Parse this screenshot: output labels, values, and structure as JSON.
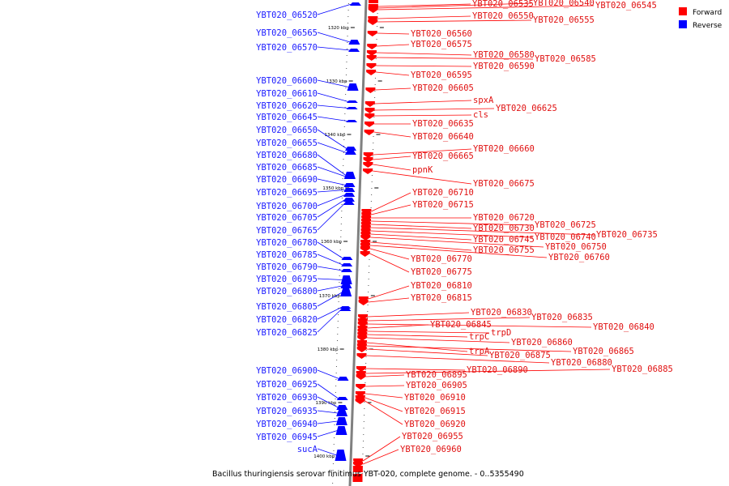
{
  "caption": "Bacillus thuringiensis serovar finitimus YBT-020, complete genome. - 0..5355490",
  "legend": [
    {
      "label": "Forward",
      "color": "#ff0000"
    },
    {
      "label": "Reverse",
      "color": "#0000ff"
    }
  ],
  "colors": {
    "forward": "#ff0000",
    "reverse": "#0000ff",
    "axis": "#808080"
  },
  "ticks": [
    "1320 kbp",
    "1330 kbp",
    "1340 kbp",
    "1350 kbp",
    "1360 kbp",
    "1370 kbp",
    "1380 kbp",
    "1390 kbp",
    "1400 kbp"
  ],
  "reverse_labels": [
    "YBT020_06520",
    "YBT020_06565",
    "YBT020_06570",
    "YBT020_06600",
    "YBT020_06610",
    "YBT020_06620",
    "YBT020_06645",
    "YBT020_06650",
    "YBT020_06655",
    "YBT020_06680",
    "YBT020_06685",
    "YBT020_06690",
    "YBT020_06695",
    "YBT020_06700",
    "YBT020_06705",
    "YBT020_06765",
    "YBT020_06780",
    "YBT020_06785",
    "YBT020_06790",
    "YBT020_06795",
    "YBT020_06800",
    "YBT020_06805",
    "YBT020_06820",
    "YBT020_06825",
    "YBT020_06900",
    "YBT020_06925",
    "YBT020_06930",
    "YBT020_06935",
    "YBT020_06940",
    "YBT020_06945",
    "sucA"
  ],
  "forward_labels": [
    "YBT020_06535",
    "YBT020_06540",
    "YBT020_06545",
    "YBT020_06550",
    "YBT020_06555",
    "YBT020_06560",
    "YBT020_06575",
    "YBT020_06580",
    "YBT020_06585",
    "YBT020_06590",
    "YBT020_06595",
    "YBT020_06605",
    "spxA",
    "YBT020_06625",
    "cls",
    "YBT020_06635",
    "YBT020_06640",
    "YBT020_06660",
    "YBT020_06665",
    "ppnK",
    "YBT020_06675",
    "YBT020_06710",
    "YBT020_06715",
    "YBT020_06720",
    "YBT020_06725",
    "YBT020_06730",
    "YBT020_06735",
    "YBT020_06740",
    "YBT020_06745",
    "YBT020_06750",
    "YBT020_06755",
    "YBT020_06760",
    "YBT020_06770",
    "YBT020_06775",
    "YBT020_06810",
    "YBT020_06815",
    "YBT020_06830",
    "YBT020_06835",
    "YBT020_06840",
    "YBT020_06845",
    "trpD",
    "trpC",
    "YBT020_06860",
    "trpA",
    "YBT020_06865",
    "YBT020_06875",
    "YBT020_06880",
    "YBT020_06890",
    "YBT020_06885",
    "YBT020_06895",
    "YBT020_06905",
    "YBT020_06910",
    "YBT020_06915",
    "YBT020_06920",
    "YBT020_06955",
    "YBT020_06960"
  ]
}
